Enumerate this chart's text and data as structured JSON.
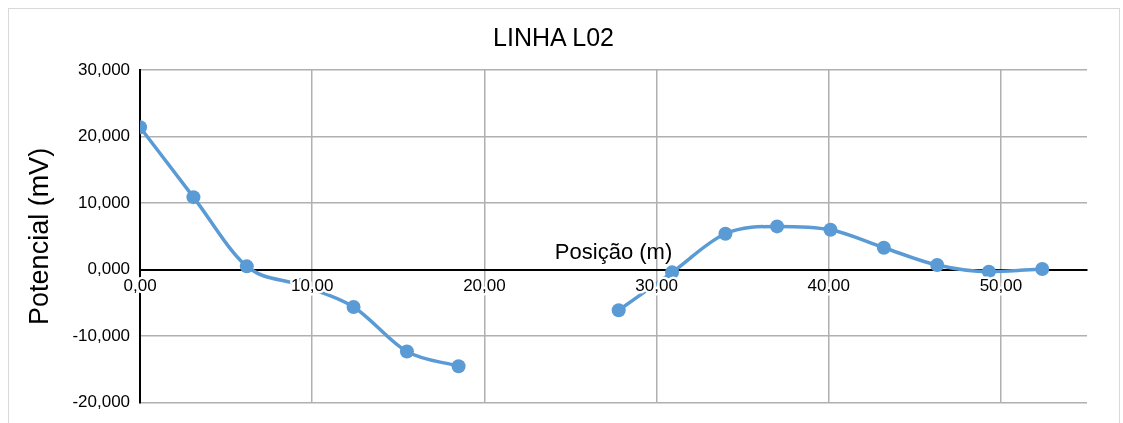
{
  "chart_data": {
    "type": "line",
    "title": "LINHA L02",
    "xlabel": "Posição (m)",
    "ylabel": "Potencial (mV)",
    "series": [
      {
        "color": "#5b9bd5",
        "x": [
          0,
          3.1,
          6.2,
          9.3,
          12.4,
          15.5,
          18.5,
          21.7,
          24.8,
          27.8,
          30.9,
          34.0,
          37.0,
          40.1,
          43.2,
          46.3,
          49.3,
          52.4
        ],
        "values": [
          21.4,
          10.9,
          0.5,
          -2.3,
          -5.6,
          -12.3,
          -14.5,
          null,
          null,
          -6.1,
          -0.4,
          5.4,
          6.5,
          6.0,
          3.3,
          0.7,
          -0.3,
          0.1
        ]
      }
    ],
    "xlim": [
      0,
      55
    ],
    "xticks": [
      {
        "value": 0,
        "label": "0,00"
      },
      {
        "value": 10,
        "label": "10,00"
      },
      {
        "value": 20,
        "label": "20,00"
      },
      {
        "value": 30,
        "label": "30,00"
      },
      {
        "value": 40,
        "label": "40,00"
      },
      {
        "value": 50,
        "label": "50,00"
      }
    ],
    "ylim": [
      -20,
      30
    ],
    "yticks": [
      {
        "value": -20,
        "label": "-20,000"
      },
      {
        "value": -10,
        "label": "-10,000"
      },
      {
        "value": 0,
        "label": "0,000"
      },
      {
        "value": 10,
        "label": "10,000"
      },
      {
        "value": 20,
        "label": "20,000"
      },
      {
        "value": 30,
        "label": "30,000"
      }
    ],
    "grid": true,
    "legend": false,
    "marker": "circle",
    "line_style": "solid"
  }
}
